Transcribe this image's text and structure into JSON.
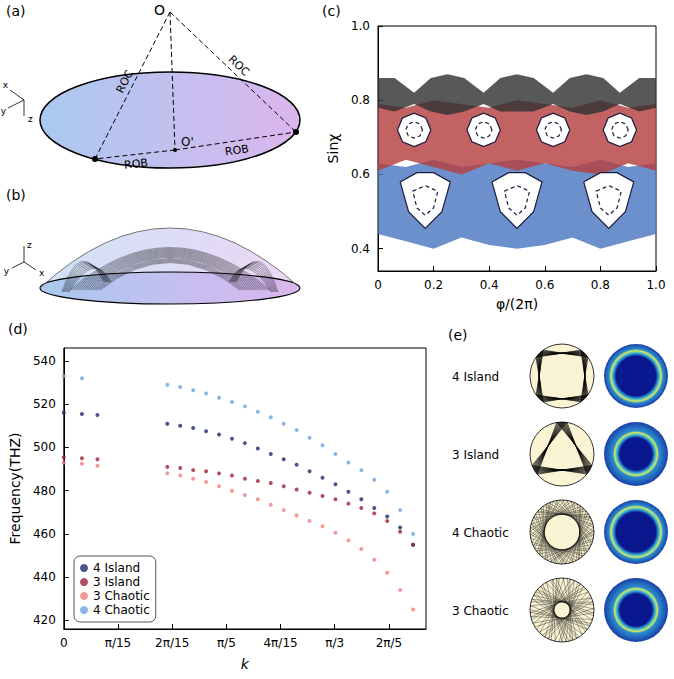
{
  "figure": {
    "a": {
      "panel": "(a)",
      "points": {
        "apex": "O",
        "center": "O'"
      },
      "line_labels": [
        "ROC",
        "ROB",
        "ROB",
        "ROC"
      ],
      "axes": [
        "x",
        "y",
        "z"
      ]
    },
    "b": {
      "panel": "(b)",
      "axes": [
        "z",
        "y",
        "x"
      ]
    },
    "e": {
      "panel": "(e)",
      "rows": [
        "4 Island",
        "3 Island",
        "4 Chaotic",
        "3 Chaotic"
      ]
    }
  },
  "chart_data": [
    {
      "panel": "(c)",
      "type": "scatter",
      "x_label": "φ/(2π)",
      "y_label": "Sinχ",
      "grid": false,
      "xlim": [
        0,
        1
      ],
      "xticks": [
        0,
        0.2,
        0.4,
        0.6,
        0.8,
        {
          "value": 1,
          "label": "1.0"
        }
      ],
      "ylim": [
        0.34,
        1
      ],
      "yticks": [
        0.4,
        0.6,
        0.8,
        {
          "value": 1,
          "label": "1.0"
        }
      ],
      "series": [
        {
          "type": "band",
          "color": "#4a78c0",
          "x": [
            0,
            0.1,
            0.2,
            0.3,
            0.4,
            0.5,
            0.6,
            0.7,
            0.8,
            0.9,
            1
          ],
          "lower": [
            0.44,
            0.42,
            0.4,
            0.43,
            0.41,
            0.4,
            0.41,
            0.43,
            0.4,
            0.42,
            0.44
          ],
          "upper": [
            0.63,
            0.62,
            0.64,
            0.62,
            0.63,
            0.64,
            0.63,
            0.62,
            0.64,
            0.62,
            0.63
          ]
        },
        {
          "type": "band",
          "color": "#b5403f",
          "x": [
            0,
            0.1,
            0.2,
            0.3,
            0.4,
            0.5,
            0.6,
            0.7,
            0.8,
            0.9,
            1
          ],
          "lower": [
            0.61,
            0.64,
            0.62,
            0.6,
            0.63,
            0.61,
            0.63,
            0.61,
            0.6,
            0.63,
            0.61
          ],
          "upper": [
            0.79,
            0.78,
            0.8,
            0.79,
            0.78,
            0.8,
            0.79,
            0.78,
            0.8,
            0.78,
            0.79
          ]
        },
        {
          "type": "band",
          "color": "#333333",
          "x": [
            0,
            0.06,
            0.13,
            0.19,
            0.25,
            0.31,
            0.38,
            0.44,
            0.5,
            0.56,
            0.63,
            0.69,
            0.75,
            0.81,
            0.87,
            0.94,
            1
          ],
          "lower": [
            0.78,
            0.77,
            0.79,
            0.77,
            0.76,
            0.77,
            0.79,
            0.77,
            0.77,
            0.77,
            0.79,
            0.77,
            0.76,
            0.77,
            0.79,
            0.77,
            0.78
          ],
          "upper": [
            0.86,
            0.86,
            0.82,
            0.86,
            0.87,
            0.86,
            0.82,
            0.86,
            0.87,
            0.86,
            0.82,
            0.86,
            0.87,
            0.86,
            0.82,
            0.86,
            0.86
          ]
        },
        {
          "type": "line",
          "color": "#1c1c3c",
          "line_style": "solid",
          "x": [
            0.19,
            0.172,
            0.13,
            0.088,
            0.07,
            0.088,
            0.13,
            0.172,
            0.19
          ],
          "y": [
            0.72,
            0.752,
            0.765,
            0.752,
            0.72,
            0.688,
            0.675,
            0.688,
            0.72
          ]
        },
        {
          "type": "line",
          "color": "#1c1c3c",
          "line_style": "dashed",
          "x": [
            0.16,
            0.151,
            0.13,
            0.109,
            0.1,
            0.109,
            0.13,
            0.151,
            0.16
          ],
          "y": [
            0.72,
            0.736,
            0.742,
            0.736,
            0.72,
            0.704,
            0.698,
            0.704,
            0.72
          ]
        },
        {
          "type": "line",
          "color": "#1c1c3c",
          "line_style": "solid",
          "x": [
            0.44,
            0.422,
            0.38,
            0.338,
            0.32,
            0.338,
            0.38,
            0.422,
            0.44
          ],
          "y": [
            0.72,
            0.752,
            0.765,
            0.752,
            0.72,
            0.688,
            0.675,
            0.688,
            0.72
          ]
        },
        {
          "type": "line",
          "color": "#1c1c3c",
          "line_style": "dashed",
          "x": [
            0.41,
            0.401,
            0.38,
            0.359,
            0.35,
            0.359,
            0.38,
            0.401,
            0.41
          ],
          "y": [
            0.72,
            0.736,
            0.742,
            0.736,
            0.72,
            0.704,
            0.698,
            0.704,
            0.72
          ]
        },
        {
          "type": "line",
          "color": "#1c1c3c",
          "line_style": "solid",
          "x": [
            0.69,
            0.672,
            0.63,
            0.588,
            0.57,
            0.588,
            0.63,
            0.672,
            0.69
          ],
          "y": [
            0.72,
            0.752,
            0.765,
            0.752,
            0.72,
            0.688,
            0.675,
            0.688,
            0.72
          ]
        },
        {
          "type": "line",
          "color": "#1c1c3c",
          "line_style": "dashed",
          "x": [
            0.66,
            0.651,
            0.63,
            0.609,
            0.6,
            0.609,
            0.63,
            0.651,
            0.66
          ],
          "y": [
            0.72,
            0.736,
            0.742,
            0.736,
            0.72,
            0.704,
            0.698,
            0.704,
            0.72
          ]
        },
        {
          "type": "line",
          "color": "#1c1c3c",
          "line_style": "solid",
          "x": [
            0.93,
            0.912,
            0.87,
            0.828,
            0.81,
            0.828,
            0.87,
            0.912,
            0.93
          ],
          "y": [
            0.72,
            0.752,
            0.765,
            0.752,
            0.72,
            0.688,
            0.675,
            0.688,
            0.72
          ]
        },
        {
          "type": "line",
          "color": "#1c1c3c",
          "line_style": "dashed",
          "x": [
            0.9,
            0.891,
            0.87,
            0.849,
            0.84,
            0.849,
            0.87,
            0.891,
            0.9
          ],
          "y": [
            0.72,
            0.736,
            0.742,
            0.736,
            0.72,
            0.704,
            0.698,
            0.704,
            0.72
          ]
        },
        {
          "type": "line",
          "color": "#1c1c3c",
          "line_style": "solid",
          "x": [
            0.08,
            0.14,
            0.2,
            0.26,
            0.23,
            0.17,
            0.11,
            0.08
          ],
          "y": [
            0.58,
            0.605,
            0.605,
            0.58,
            0.5,
            0.455,
            0.5,
            0.58
          ]
        },
        {
          "type": "line",
          "color": "#1c1c3c",
          "line_style": "dashed",
          "x": [
            0.125,
            0.17,
            0.215,
            0.2,
            0.17,
            0.14,
            0.125
          ],
          "y": [
            0.555,
            0.57,
            0.555,
            0.51,
            0.49,
            0.51,
            0.555
          ]
        },
        {
          "type": "line",
          "color": "#1c1c3c",
          "line_style": "solid",
          "x": [
            0.41,
            0.47,
            0.53,
            0.59,
            0.56,
            0.5,
            0.44,
            0.41
          ],
          "y": [
            0.58,
            0.605,
            0.605,
            0.58,
            0.5,
            0.455,
            0.5,
            0.58
          ]
        },
        {
          "type": "line",
          "color": "#1c1c3c",
          "line_style": "dashed",
          "x": [
            0.455,
            0.5,
            0.545,
            0.53,
            0.5,
            0.47,
            0.455
          ],
          "y": [
            0.555,
            0.57,
            0.555,
            0.51,
            0.49,
            0.51,
            0.555
          ]
        },
        {
          "type": "line",
          "color": "#1c1c3c",
          "line_style": "solid",
          "x": [
            0.74,
            0.8,
            0.86,
            0.92,
            0.89,
            0.83,
            0.77,
            0.74
          ],
          "y": [
            0.58,
            0.605,
            0.605,
            0.58,
            0.5,
            0.455,
            0.5,
            0.58
          ]
        },
        {
          "type": "line",
          "color": "#1c1c3c",
          "line_style": "dashed",
          "x": [
            0.785,
            0.83,
            0.875,
            0.86,
            0.83,
            0.8,
            0.785
          ],
          "y": [
            0.555,
            0.57,
            0.555,
            0.51,
            0.49,
            0.51,
            0.555
          ]
        }
      ]
    },
    {
      "panel": "(d)",
      "type": "scatter",
      "marker": "circle",
      "x_label": "k",
      "y_label": "Frequency(THZ)",
      "grid": false,
      "legend": "lower left",
      "xlim": [
        0,
        1.4
      ],
      "xticks": [
        0,
        {
          "value": 0.2094,
          "label": "π/15"
        },
        {
          "value": 0.4189,
          "label": "2π/15"
        },
        {
          "value": 0.6283,
          "label": "π/5"
        },
        {
          "value": 0.8378,
          "label": "4π/15"
        },
        {
          "value": 1.0472,
          "label": "π/3"
        },
        {
          "value": 1.2566,
          "label": "2π/5"
        }
      ],
      "ylim": [
        416,
        546
      ],
      "yticks": [
        420,
        440,
        460,
        480,
        500,
        520,
        540
      ],
      "series": [
        {
          "name": "4 Island",
          "color": "#1f2a6b",
          "x": [
            0,
            0.07,
            0.13,
            0.4,
            0.45,
            0.5,
            0.55,
            0.6,
            0.65,
            0.7,
            0.75,
            0.8,
            0.85,
            0.9,
            0.95,
            1.0,
            1.05,
            1.1,
            1.15,
            1.2,
            1.25,
            1.3,
            1.35
          ],
          "y": [
            516,
            515.5,
            515,
            511,
            510,
            509,
            507.5,
            506,
            504,
            502,
            499.5,
            497,
            494.5,
            492,
            489,
            486,
            483,
            479.5,
            476,
            472,
            468,
            463,
            455
          ]
        },
        {
          "name": "3 Island",
          "color": "#9b2335",
          "x": [
            0,
            0.07,
            0.13,
            0.4,
            0.45,
            0.5,
            0.55,
            0.6,
            0.65,
            0.7,
            0.75,
            0.8,
            0.85,
            0.9,
            0.95,
            1.0,
            1.05,
            1.1,
            1.15,
            1.2,
            1.25,
            1.3,
            1.35
          ],
          "y": [
            495.5,
            495,
            494.5,
            491,
            490.5,
            489.5,
            489,
            488,
            487,
            485.5,
            484.5,
            483.5,
            482,
            480.5,
            479,
            477.5,
            476,
            474,
            472,
            469.5,
            466,
            461,
            455
          ]
        },
        {
          "name": "3 Chaotic",
          "color": "#f08080",
          "x": [
            0,
            0.07,
            0.13,
            0.4,
            0.45,
            0.5,
            0.55,
            0.6,
            0.65,
            0.7,
            0.75,
            0.8,
            0.85,
            0.9,
            0.95,
            1.0,
            1.05,
            1.1,
            1.15,
            1.2,
            1.25,
            1.3,
            1.35
          ],
          "y": [
            493,
            492.5,
            491.5,
            488,
            487,
            485.5,
            484,
            482,
            480,
            478,
            476,
            473.5,
            471,
            468.5,
            466,
            463.5,
            460.5,
            457,
            453,
            448,
            442,
            434,
            425
          ]
        },
        {
          "name": "4 Chaotic",
          "color": "#6fa3e0",
          "x": [
            0,
            0.07,
            0.4,
            0.45,
            0.5,
            0.55,
            0.6,
            0.65,
            0.7,
            0.75,
            0.8,
            0.85,
            0.9,
            0.95,
            1.0,
            1.05,
            1.1,
            1.15,
            1.2,
            1.25,
            1.3,
            1.35
          ],
          "y": [
            533,
            532,
            529,
            528,
            526.5,
            525,
            523,
            521,
            519,
            516.5,
            514,
            511,
            508,
            504.5,
            501,
            497,
            493,
            489.5,
            485,
            479.5,
            471,
            460
          ]
        }
      ]
    }
  ]
}
